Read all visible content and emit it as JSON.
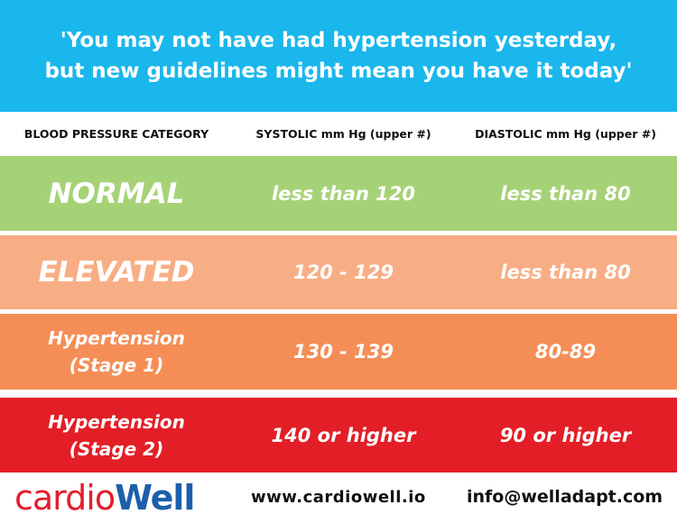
{
  "banner": {
    "line1": "'You may not have had hypertension yesterday,",
    "line2": "but new guidelines might mean you have it today'"
  },
  "headers": {
    "category": "BLOOD PRESSURE CATEGORY",
    "systolic": "SYSTOLIC mm Hg (upper #)",
    "diastolic": "DIASTOLIC mm Hg (upper #)"
  },
  "rows": [
    {
      "category": "NORMAL",
      "systolic": "less than 120",
      "diastolic": "less than 80",
      "color": "#a6d277"
    },
    {
      "category": "ELEVATED",
      "systolic": "120 - 129",
      "diastolic": "less than 80",
      "color": "#f8ae85"
    },
    {
      "category_line1": "Hypertension",
      "category_line2": "(Stage 1)",
      "systolic": "130 - 139",
      "diastolic": "80-89",
      "color": "#f48e56"
    },
    {
      "category_line1": "Hypertension",
      "category_line2": "(Stage 2)",
      "systolic": "140 or higher",
      "diastolic": "90 or higher",
      "color": "#e31e26"
    }
  ],
  "footer": {
    "logo_part1": "cardio",
    "logo_part2": "Well",
    "website": "www.cardiowell.io",
    "email": "info@welladapt.com"
  },
  "colors": {
    "banner": "#1ab7ec",
    "logo_red": "#e31e2d",
    "logo_blue": "#1d5fab"
  }
}
